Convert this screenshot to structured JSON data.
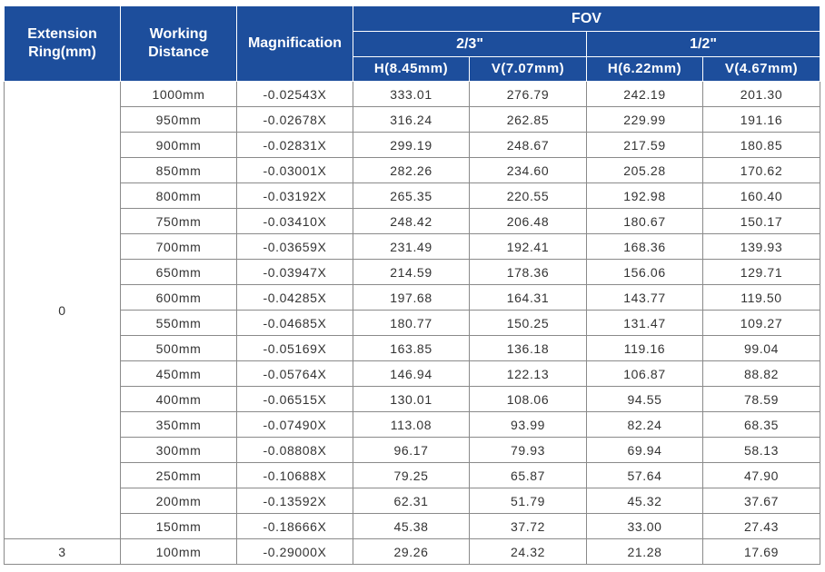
{
  "header": {
    "extension_ring": "Extension Ring(mm)",
    "working_distance": "Working Distance",
    "magnification": "Magnification",
    "fov": "FOV",
    "sensor_a": "2/3\"",
    "sensor_b": "1/2\"",
    "a_h": "H(8.45mm)",
    "a_v": "V(7.07mm)",
    "b_h": "H(6.22mm)",
    "b_v": "V(4.67mm)"
  },
  "groups": [
    {
      "ring": "0",
      "rows": [
        [
          "1000mm",
          "-0.02543X",
          "333.01",
          "276.79",
          "242.19",
          "201.30"
        ],
        [
          "950mm",
          "-0.02678X",
          "316.24",
          "262.85",
          "229.99",
          "191.16"
        ],
        [
          "900mm",
          "-0.02831X",
          "299.19",
          "248.67",
          "217.59",
          "180.85"
        ],
        [
          "850mm",
          "-0.03001X",
          "282.26",
          "234.60",
          "205.28",
          "170.62"
        ],
        [
          "800mm",
          "-0.03192X",
          "265.35",
          "220.55",
          "192.98",
          "160.40"
        ],
        [
          "750mm",
          "-0.03410X",
          "248.42",
          "206.48",
          "180.67",
          "150.17"
        ],
        [
          "700mm",
          "-0.03659X",
          "231.49",
          "192.41",
          "168.36",
          "139.93"
        ],
        [
          "650mm",
          "-0.03947X",
          "214.59",
          "178.36",
          "156.06",
          "129.71"
        ],
        [
          "600mm",
          "-0.04285X",
          "197.68",
          "164.31",
          "143.77",
          "119.50"
        ],
        [
          "550mm",
          "-0.04685X",
          "180.77",
          "150.25",
          "131.47",
          "109.27"
        ],
        [
          "500mm",
          "-0.05169X",
          "163.85",
          "136.18",
          "119.16",
          "99.04"
        ],
        [
          "450mm",
          "-0.05764X",
          "146.94",
          "122.13",
          "106.87",
          "88.82"
        ],
        [
          "400mm",
          "-0.06515X",
          "130.01",
          "108.06",
          "94.55",
          "78.59"
        ],
        [
          "350mm",
          "-0.07490X",
          "113.08",
          "93.99",
          "82.24",
          "68.35"
        ],
        [
          "300mm",
          "-0.08808X",
          "96.17",
          "79.93",
          "69.94",
          "58.13"
        ],
        [
          "250mm",
          "-0.10688X",
          "79.25",
          "65.87",
          "57.64",
          "47.90"
        ],
        [
          "200mm",
          "-0.13592X",
          "62.31",
          "51.79",
          "45.32",
          "37.67"
        ],
        [
          "150mm",
          "-0.18666X",
          "45.38",
          "37.72",
          "33.00",
          "27.43"
        ]
      ]
    },
    {
      "ring": "3",
      "rows": [
        [
          "100mm",
          "-0.29000X",
          "29.26",
          "24.32",
          "21.28",
          "17.69"
        ]
      ]
    }
  ]
}
